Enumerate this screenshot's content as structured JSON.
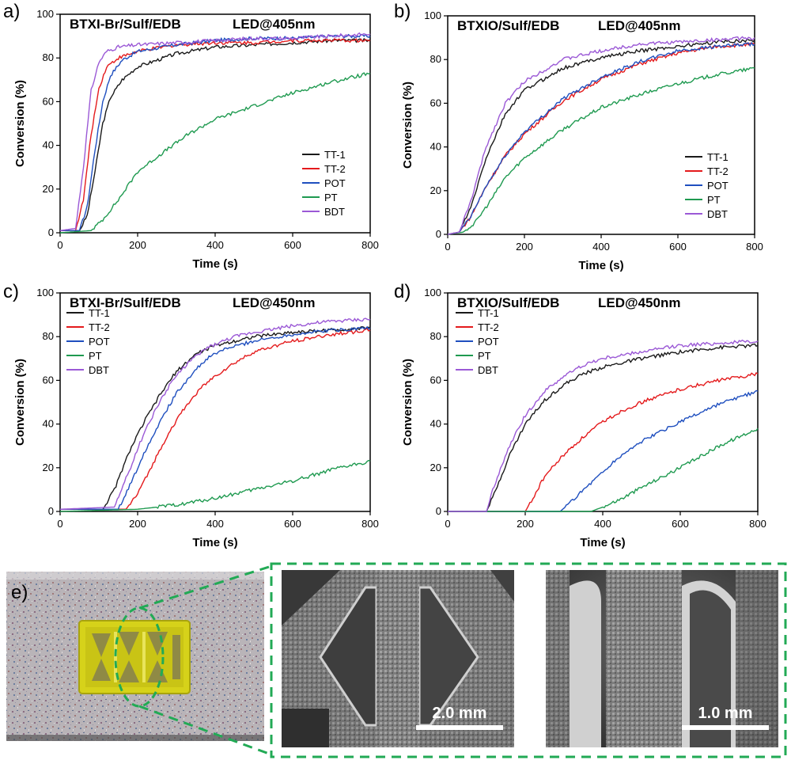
{
  "chart_data": [
    {
      "panel_label": "a)",
      "type": "line",
      "title": "BTXI-Br/Sulf/EDB",
      "subtitle": "LED@405nm",
      "xlabel": "Time (s)",
      "ylabel": "Conversion (%)",
      "xlim": [
        0,
        800
      ],
      "ylim": [
        0,
        100
      ],
      "xticks": [
        0,
        200,
        400,
        600,
        800
      ],
      "yticks": [
        0,
        20,
        40,
        60,
        80,
        100
      ],
      "legend_position": "bottom-right",
      "series": [
        {
          "name": "TT-1",
          "color": "#1a1a1a",
          "x": [
            0,
            50,
            70,
            90,
            110,
            130,
            160,
            200,
            300,
            400,
            500,
            600,
            700,
            800
          ],
          "y": [
            1,
            1,
            8,
            28,
            50,
            62,
            70,
            76,
            82,
            85,
            86,
            87,
            88,
            88
          ]
        },
        {
          "name": "TT-2",
          "color": "#e41a1c",
          "x": [
            0,
            40,
            60,
            80,
            100,
            120,
            150,
            200,
            300,
            400,
            500,
            600,
            700,
            800
          ],
          "y": [
            1,
            1,
            15,
            45,
            66,
            76,
            80,
            83,
            86,
            87,
            87,
            88,
            88,
            88
          ]
        },
        {
          "name": "POT",
          "color": "#1f4fbf",
          "x": [
            0,
            50,
            70,
            90,
            110,
            130,
            160,
            200,
            300,
            400,
            500,
            600,
            700,
            800
          ],
          "y": [
            1,
            1,
            12,
            38,
            60,
            72,
            79,
            83,
            86,
            88,
            89,
            89,
            90,
            90
          ]
        },
        {
          "name": "PT",
          "color": "#1f9a50",
          "x": [
            0,
            80,
            110,
            150,
            200,
            260,
            330,
            400,
            500,
            600,
            700,
            800
          ],
          "y": [
            0,
            1,
            6,
            15,
            28,
            36,
            45,
            52,
            58,
            64,
            69,
            73
          ]
        },
        {
          "name": "BDT",
          "color": "#9b59d6",
          "x": [
            0,
            40,
            60,
            80,
            100,
            120,
            150,
            200,
            300,
            400,
            500,
            600,
            700,
            800
          ],
          "y": [
            1,
            2,
            30,
            65,
            78,
            83,
            85,
            86,
            87,
            88,
            89,
            89,
            90,
            91
          ]
        }
      ]
    },
    {
      "panel_label": "b)",
      "type": "line",
      "title": "BTXIO/Sulf/EDB",
      "subtitle": "LED@405nm",
      "xlabel": "Time (s)",
      "ylabel": "Conversion (%)",
      "xlim": [
        0,
        800
      ],
      "ylim": [
        0,
        100
      ],
      "xticks": [
        0,
        200,
        400,
        600,
        800
      ],
      "yticks": [
        0,
        20,
        40,
        60,
        80,
        100
      ],
      "legend_position": "bottom-right",
      "series": [
        {
          "name": "TT-1",
          "color": "#1a1a1a",
          "x": [
            0,
            30,
            60,
            100,
            150,
            200,
            300,
            400,
            500,
            600,
            700,
            800
          ],
          "y": [
            0,
            1,
            12,
            35,
            55,
            66,
            76,
            81,
            84,
            86,
            88,
            89
          ]
        },
        {
          "name": "TT-2",
          "color": "#e41a1c",
          "x": [
            0,
            30,
            60,
            100,
            150,
            200,
            300,
            400,
            500,
            600,
            700,
            800
          ],
          "y": [
            0,
            1,
            8,
            22,
            36,
            46,
            61,
            71,
            78,
            83,
            86,
            87
          ]
        },
        {
          "name": "POT",
          "color": "#1f4fbf",
          "x": [
            0,
            30,
            60,
            100,
            150,
            200,
            300,
            400,
            500,
            600,
            700,
            800
          ],
          "y": [
            0,
            1,
            8,
            22,
            36,
            47,
            62,
            72,
            79,
            84,
            86,
            87
          ]
        },
        {
          "name": "PT",
          "color": "#1f9a50",
          "x": [
            0,
            40,
            70,
            110,
            150,
            200,
            300,
            400,
            500,
            600,
            700,
            800
          ],
          "y": [
            0,
            1,
            5,
            15,
            26,
            35,
            48,
            58,
            64,
            69,
            73,
            76
          ]
        },
        {
          "name": "DBT",
          "color": "#9b59d6",
          "x": [
            0,
            30,
            60,
            100,
            150,
            200,
            300,
            400,
            500,
            600,
            700,
            800
          ],
          "y": [
            0,
            1,
            15,
            40,
            60,
            70,
            80,
            84,
            87,
            88,
            89,
            90
          ]
        }
      ]
    },
    {
      "panel_label": "c)",
      "type": "line",
      "title": "BTXI-Br/Sulf/EDB",
      "subtitle": "LED@450nm",
      "xlabel": "Time (s)",
      "ylabel": "Conversion (%)",
      "xlim": [
        0,
        800
      ],
      "ylim": [
        0,
        100
      ],
      "xticks": [
        0,
        200,
        400,
        600,
        800
      ],
      "yticks": [
        0,
        20,
        40,
        60,
        80,
        100
      ],
      "legend_position": "top-left",
      "series": [
        {
          "name": "TT-1",
          "color": "#1a1a1a",
          "x": [
            0,
            110,
            140,
            180,
            220,
            260,
            300,
            350,
            400,
            500,
            600,
            700,
            800
          ],
          "y": [
            1,
            1,
            10,
            28,
            42,
            54,
            64,
            72,
            76,
            80,
            82,
            83,
            84
          ]
        },
        {
          "name": "TT-2",
          "color": "#e41a1c",
          "x": [
            0,
            170,
            200,
            240,
            280,
            320,
            360,
            400,
            450,
            500,
            600,
            700,
            800
          ],
          "y": [
            1,
            1,
            8,
            22,
            36,
            47,
            56,
            62,
            68,
            73,
            78,
            81,
            83
          ]
        },
        {
          "name": "POT",
          "color": "#1f4fbf",
          "x": [
            0,
            150,
            180,
            220,
            260,
            300,
            340,
            380,
            420,
            500,
            600,
            700,
            800
          ],
          "y": [
            1,
            1,
            12,
            28,
            42,
            54,
            63,
            70,
            74,
            78,
            81,
            83,
            84
          ]
        },
        {
          "name": "PT",
          "color": "#1f9a50",
          "x": [
            0,
            200,
            300,
            400,
            500,
            600,
            700,
            800
          ],
          "y": [
            0,
            1,
            3,
            6,
            10,
            14,
            19,
            23
          ]
        },
        {
          "name": "DBT",
          "color": "#9b59d6",
          "x": [
            0,
            140,
            170,
            210,
            250,
            290,
            330,
            380,
            450,
            500,
            600,
            700,
            800
          ],
          "y": [
            1,
            2,
            15,
            33,
            48,
            60,
            68,
            75,
            80,
            82,
            85,
            87,
            88
          ]
        }
      ]
    },
    {
      "panel_label": "d)",
      "type": "line",
      "title": "BTXIO/Sulf/EDB",
      "subtitle": "LED@450nm",
      "xlabel": "Time (s)",
      "ylabel": "Conversion (%)",
      "xlim": [
        0,
        800
      ],
      "ylim": [
        0,
        100
      ],
      "xticks": [
        0,
        200,
        400,
        600,
        800
      ],
      "yticks": [
        0,
        20,
        40,
        60,
        80,
        100
      ],
      "legend_position": "top-left",
      "series": [
        {
          "name": "TT-1",
          "color": "#1a1a1a",
          "x": [
            0,
            100,
            120,
            160,
            200,
            250,
            300,
            350,
            400,
            500,
            600,
            700,
            800
          ],
          "y": [
            0,
            0,
            8,
            26,
            40,
            51,
            58,
            63,
            66,
            70,
            73,
            75,
            76
          ]
        },
        {
          "name": "TT-2",
          "color": "#e41a1c",
          "x": [
            0,
            200,
            220,
            250,
            300,
            350,
            400,
            450,
            500,
            600,
            700,
            800
          ],
          "y": [
            0,
            0,
            6,
            16,
            26,
            34,
            41,
            46,
            50,
            56,
            60,
            63
          ]
        },
        {
          "name": "POT",
          "color": "#1f4fbf",
          "x": [
            0,
            290,
            310,
            350,
            400,
            450,
            500,
            600,
            700,
            800
          ],
          "y": [
            0,
            0,
            3,
            10,
            18,
            26,
            32,
            41,
            49,
            55
          ]
        },
        {
          "name": "PT",
          "color": "#1f9a50",
          "x": [
            0,
            370,
            400,
            450,
            500,
            600,
            700,
            800
          ],
          "y": [
            0,
            0,
            2,
            6,
            11,
            20,
            30,
            38
          ]
        },
        {
          "name": "DBT",
          "color": "#9b59d6",
          "x": [
            0,
            100,
            120,
            160,
            200,
            250,
            300,
            350,
            400,
            500,
            600,
            700,
            800
          ],
          "y": [
            0,
            0,
            12,
            30,
            44,
            55,
            62,
            67,
            70,
            73,
            76,
            77,
            78
          ]
        }
      ]
    }
  ],
  "figure_e": {
    "panel_label": "e)",
    "scale_bar_1": "2.0 mm",
    "scale_bar_2": "1.0 mm",
    "colors": {
      "dashed_frame": "#22aa55",
      "printed_part": "#d6d21a",
      "sem_background": "#3c3c3c"
    }
  }
}
